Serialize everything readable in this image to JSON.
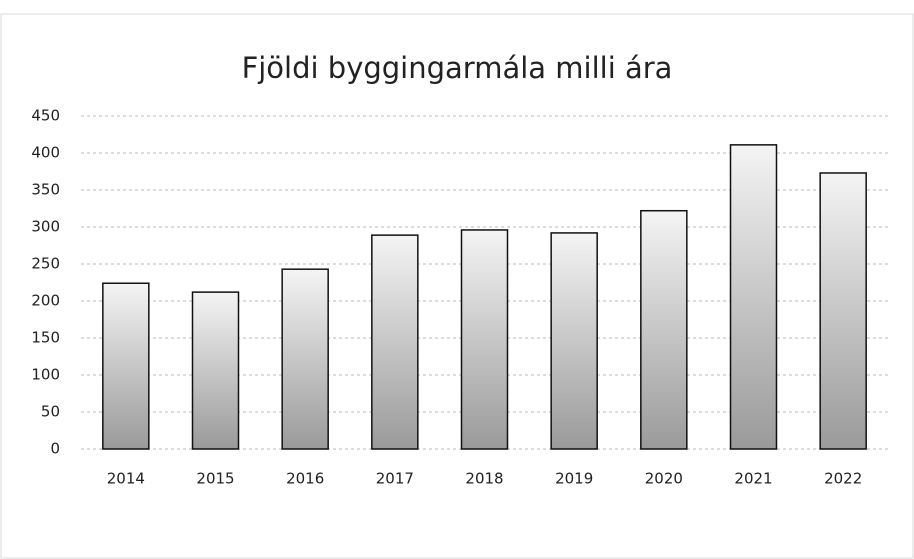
{
  "chart_data": {
    "type": "bar",
    "title": "Fjöldi byggingarmála milli ára",
    "categories": [
      "2014",
      "2015",
      "2016",
      "2017",
      "2018",
      "2019",
      "2020",
      "2021",
      "2022"
    ],
    "values": [
      224,
      212,
      243,
      289,
      296,
      292,
      322,
      411,
      373
    ],
    "color": "#9a9a9a",
    "ylim": [
      0,
      450
    ],
    "yticks": [
      0,
      50,
      100,
      150,
      200,
      250,
      300,
      350,
      400,
      450
    ],
    "grid": true
  }
}
